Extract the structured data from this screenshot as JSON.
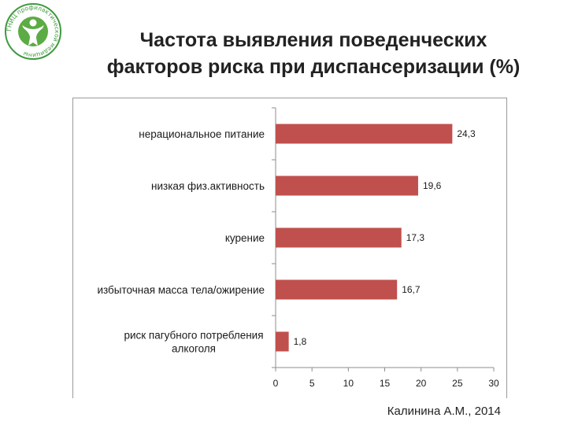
{
  "title_line1": "Частота выявления поведенческих",
  "title_line2": "факторов риска при диспансеризации (%)",
  "logo_text": "ГНИЦ профилактической медицины",
  "author": "Калинина А.М., 2014",
  "colors": {
    "bar": "#c0504d",
    "axis": "#8c8c8c"
  },
  "chart_data": {
    "type": "bar",
    "orientation": "horizontal",
    "title": "Частота выявления поведенческих факторов риска при диспансеризации (%)",
    "categories": [
      "нерациональное питание",
      "низкая физ.активность",
      "курение",
      "избыточная масса тела/ожирение",
      "риск пагубного потребления алкоголя"
    ],
    "category_lines": [
      [
        "нерациональное питание"
      ],
      [
        "низкая физ.активность"
      ],
      [
        "курение"
      ],
      [
        "избыточная масса тела/ожирение"
      ],
      [
        "риск пагубного потребления",
        "алкоголя"
      ]
    ],
    "values": [
      24.3,
      19.6,
      17.3,
      16.7,
      1.8
    ],
    "value_labels": [
      "24,3",
      "19,6",
      "17,3",
      "16,7",
      "1,8"
    ],
    "xlim": [
      0,
      30
    ],
    "xticks": [
      0,
      5,
      10,
      15,
      20,
      25,
      30
    ],
    "grid": false,
    "legend": "none"
  }
}
